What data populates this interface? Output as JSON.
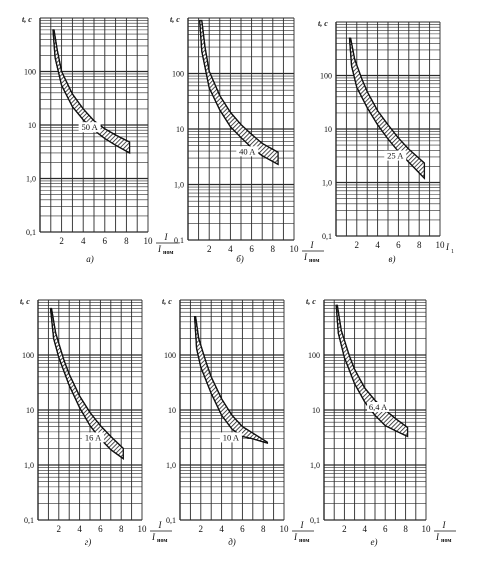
{
  "figure": {
    "y_axis_label": "t, c",
    "x_axis_fraction_top": "I",
    "x_axis_fraction_bottom": "I",
    "x_axis_fraction_bottom_sub": "ном",
    "panel_v_x_axis_label": "I",
    "panel_v_x_axis_label_sub": "1"
  },
  "colors": {
    "ink": "#111111",
    "grid": "#2a2a2a",
    "band_fill": "#555555"
  },
  "chart_data": [
    {
      "type": "area",
      "panel": "a)",
      "annotation": "50 A",
      "x_ticks": [
        "2",
        "4",
        "6",
        "8",
        "10"
      ],
      "y_ticks": [
        "0,1",
        "1,0",
        "10",
        "100"
      ],
      "xlim": [
        0,
        10
      ],
      "ylim": [
        0.1,
        1000
      ],
      "y_scale": "log",
      "grid": true,
      "series": [
        {
          "band": "upper",
          "x": [
            1.3,
            1.6,
            2,
            3,
            4,
            5,
            6,
            7,
            8.3
          ],
          "y": [
            600,
            250,
            100,
            38,
            20,
            12,
            8.5,
            6.5,
            4.8
          ]
        },
        {
          "band": "lower",
          "x": [
            1.2,
            1.4,
            2,
            3,
            4,
            5,
            6,
            7,
            8.3
          ],
          "y": [
            600,
            180,
            55,
            22,
            12.5,
            8,
            5.6,
            4.2,
            3.0
          ]
        }
      ]
    },
    {
      "type": "area",
      "panel": "б)",
      "annotation": "40 A",
      "x_ticks": [
        "2",
        "4",
        "6",
        "8",
        "10"
      ],
      "y_ticks": [
        "0,1",
        "1,0",
        "10",
        "100"
      ],
      "xlim": [
        0,
        10
      ],
      "ylim": [
        0.1,
        1000
      ],
      "y_scale": "log",
      "grid": true,
      "series": [
        {
          "band": "upper",
          "x": [
            1.3,
            1.6,
            2,
            3,
            4,
            5,
            6,
            7,
            8.5
          ],
          "y": [
            900,
            300,
            110,
            40,
            20,
            12,
            8,
            5.5,
            3.8
          ]
        },
        {
          "band": "lower",
          "x": [
            1.1,
            1.3,
            2,
            3,
            4,
            5,
            6,
            7,
            8.5
          ],
          "y": [
            900,
            250,
            55,
            22,
            11,
            7,
            4.6,
            3.3,
            2.3
          ]
        }
      ]
    },
    {
      "type": "area",
      "panel": "в)",
      "annotation": "25 A",
      "x_ticks": [
        "2",
        "4",
        "6",
        "8",
        "10"
      ],
      "y_ticks": [
        "0,1",
        "1,0",
        "10",
        "100"
      ],
      "xlim": [
        0,
        10
      ],
      "ylim": [
        0.1,
        1000
      ],
      "y_scale": "log",
      "grid": true,
      "series": [
        {
          "band": "upper",
          "x": [
            1.4,
            1.8,
            2.5,
            3,
            4,
            5,
            6,
            7,
            8.5
          ],
          "y": [
            500,
            200,
            85,
            50,
            22,
            12,
            6.8,
            4.2,
            2.3
          ]
        },
        {
          "band": "lower",
          "x": [
            1.3,
            1.5,
            2,
            3,
            4,
            5,
            6,
            7,
            8.5
          ],
          "y": [
            500,
            150,
            60,
            25,
            12,
            6.5,
            3.8,
            2.4,
            1.2
          ]
        }
      ]
    },
    {
      "type": "area",
      "panel": "г)",
      "annotation": "16 A",
      "x_ticks": [
        "2",
        "4",
        "6",
        "8",
        "10"
      ],
      "y_ticks": [
        "0,1",
        "1,0",
        "10",
        "100"
      ],
      "xlim": [
        0,
        10
      ],
      "ylim": [
        0.1,
        1000
      ],
      "y_scale": "log",
      "grid": true,
      "series": [
        {
          "band": "upper",
          "x": [
            1.3,
            1.7,
            2.5,
            3,
            4,
            5,
            6,
            7,
            8.2
          ],
          "y": [
            700,
            250,
            80,
            45,
            18,
            9,
            5.2,
            3.3,
            2.0
          ]
        },
        {
          "band": "lower",
          "x": [
            1.2,
            1.5,
            2,
            3,
            4,
            5,
            6,
            7,
            8.2
          ],
          "y": [
            700,
            200,
            90,
            28,
            11,
            5.2,
            3.0,
            1.9,
            1.3
          ]
        }
      ]
    },
    {
      "type": "area",
      "panel": "д)",
      "annotation": "10 A",
      "x_ticks": [
        "2",
        "4",
        "6",
        "8",
        "10"
      ],
      "y_ticks": [
        "0,1",
        "1,0",
        "10",
        "100"
      ],
      "xlim": [
        0,
        10
      ],
      "ylim": [
        0.1,
        1000
      ],
      "y_scale": "log",
      "grid": true,
      "series": [
        {
          "band": "upper",
          "x": [
            1.5,
            1.8,
            2.5,
            3,
            4,
            5,
            6,
            7,
            8.4
          ],
          "y": [
            500,
            200,
            75,
            40,
            16,
            8,
            5,
            3.8,
            2.6
          ]
        },
        {
          "band": "lower",
          "x": [
            1.4,
            1.6,
            2,
            3,
            4,
            5,
            6,
            7,
            8.4
          ],
          "y": [
            500,
            130,
            60,
            20,
            8,
            4.5,
            3.3,
            3.0,
            2.5
          ]
        }
      ]
    },
    {
      "type": "area",
      "panel": "e)",
      "annotation": "6,4 A",
      "x_ticks": [
        "2",
        "4",
        "6",
        "8",
        "10"
      ],
      "y_ticks": [
        "0,1",
        "1,0",
        "10",
        "100"
      ],
      "xlim": [
        0,
        10
      ],
      "ylim": [
        0.1,
        1000
      ],
      "y_scale": "log",
      "grid": true,
      "series": [
        {
          "band": "upper",
          "x": [
            1.3,
            1.7,
            2.5,
            3,
            4,
            5,
            6,
            7,
            8.2
          ],
          "y": [
            800,
            280,
            95,
            55,
            25,
            15,
            10,
            7,
            4.8
          ]
        },
        {
          "band": "lower",
          "x": [
            1.2,
            1.4,
            2,
            3,
            4,
            5,
            6,
            7,
            8.2
          ],
          "y": [
            800,
            250,
            90,
            30,
            14,
            8,
            5.2,
            4.2,
            3.3
          ]
        }
      ]
    }
  ]
}
